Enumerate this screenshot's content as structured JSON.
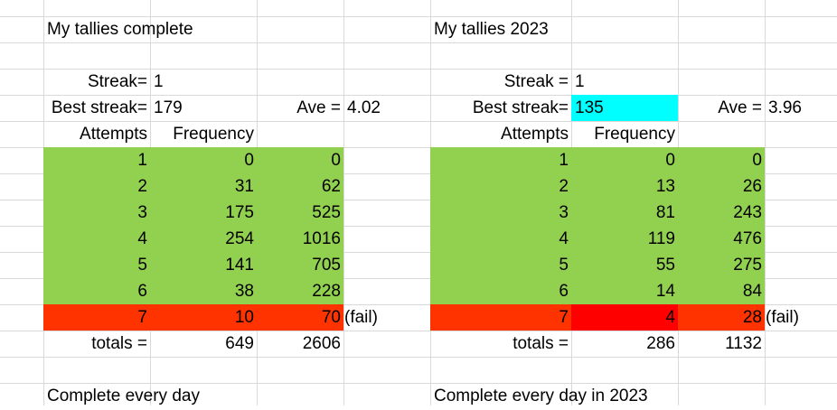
{
  "colors": {
    "green": "#92d050",
    "red": "#ff3300",
    "bright_red": "#ff0000",
    "cyan": "#00ffff",
    "grid": "#d9d9d9"
  },
  "panels": [
    {
      "title": "My tallies complete",
      "streak_label": "Streak=",
      "streak_value": "1",
      "best_label": "Best streak=",
      "best_value": "179",
      "ave_label": "Ave =",
      "ave_value": "4.02",
      "attempts_header": "Attempts",
      "frequency_header": "Frequency",
      "rows": [
        {
          "attempts": "1",
          "frequency": "0",
          "product": "0"
        },
        {
          "attempts": "2",
          "frequency": "31",
          "product": "62"
        },
        {
          "attempts": "3",
          "frequency": "175",
          "product": "525"
        },
        {
          "attempts": "4",
          "frequency": "254",
          "product": "1016"
        },
        {
          "attempts": "5",
          "frequency": "141",
          "product": "705"
        },
        {
          "attempts": "6",
          "frequency": "38",
          "product": "228"
        },
        {
          "attempts": "7",
          "frequency": "10",
          "product": "70",
          "note": "(fail)"
        }
      ],
      "totals_label": "totals =",
      "totals_frequency": "649",
      "totals_product": "2606",
      "footer": "Complete every day"
    },
    {
      "title": "My tallies 2023",
      "streak_label": "Streak =",
      "streak_value": "1",
      "best_label": "Best streak=",
      "best_value": "135",
      "ave_label": "Ave =",
      "ave_value": "3.96",
      "attempts_header": "Attempts",
      "frequency_header": "Frequency",
      "rows": [
        {
          "attempts": "1",
          "frequency": "0",
          "product": "0"
        },
        {
          "attempts": "2",
          "frequency": "13",
          "product": "26"
        },
        {
          "attempts": "3",
          "frequency": "81",
          "product": "243"
        },
        {
          "attempts": "4",
          "frequency": "119",
          "product": "476"
        },
        {
          "attempts": "5",
          "frequency": "55",
          "product": "275"
        },
        {
          "attempts": "6",
          "frequency": "14",
          "product": "84"
        },
        {
          "attempts": "7",
          "frequency": "4",
          "product": "28",
          "note": "(fail)"
        }
      ],
      "totals_label": "totals =",
      "totals_frequency": "286",
      "totals_product": "1132",
      "footer": "Complete every day in 2023"
    }
  ]
}
